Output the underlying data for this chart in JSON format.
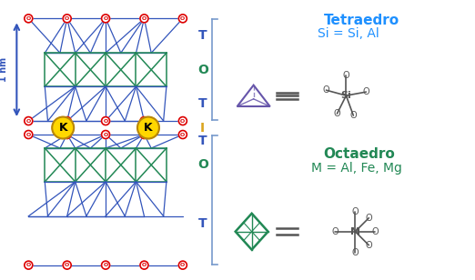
{
  "bg_color": "#ffffff",
  "blue_color": "#3355BB",
  "green_color": "#228855",
  "red_color": "#DD0000",
  "gold_color": "#FFD700",
  "dark_gold": "#B8860B",
  "purple_color": "#6655AA",
  "teal_color": "#228855",
  "gray_color": "#888888",
  "cyan_color": "#1E90FF",
  "label_T": "T",
  "label_O": "O",
  "label_I": "I",
  "label_K": "K",
  "title_tetra": "Tetraedro",
  "subtitle_tetra": "Si = Si, Al",
  "title_octa": "Octaedro",
  "subtitle_octa": "M = Al, Fe, Mg",
  "label_1nm": "1 nm"
}
